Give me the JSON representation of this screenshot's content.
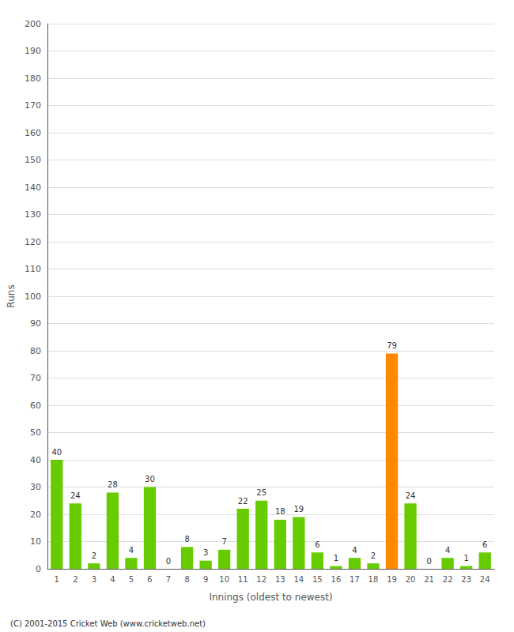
{
  "chart_data": {
    "type": "bar",
    "xlabel": "Innings (oldest to newest)",
    "ylabel": "Runs",
    "categories": [
      1,
      2,
      3,
      4,
      5,
      6,
      7,
      8,
      9,
      10,
      11,
      12,
      13,
      14,
      15,
      16,
      17,
      18,
      19,
      20,
      21,
      22,
      23,
      24
    ],
    "values": [
      40,
      24,
      2,
      28,
      4,
      30,
      0,
      8,
      3,
      7,
      22,
      25,
      18,
      19,
      6,
      1,
      4,
      2,
      79,
      24,
      0,
      4,
      1,
      6
    ],
    "colors": [
      "#66cc00",
      "#66cc00",
      "#66cc00",
      "#66cc00",
      "#66cc00",
      "#66cc00",
      "#66cc00",
      "#66cc00",
      "#66cc00",
      "#66cc00",
      "#66cc00",
      "#66cc00",
      "#66cc00",
      "#66cc00",
      "#66cc00",
      "#66cc00",
      "#66cc00",
      "#66cc00",
      "#ff8800",
      "#66cc00",
      "#66cc00",
      "#66cc00",
      "#66cc00",
      "#66cc00"
    ],
    "ylim": [
      0,
      200
    ],
    "yticks": [
      0,
      10,
      20,
      30,
      40,
      50,
      60,
      70,
      80,
      90,
      100,
      110,
      120,
      130,
      140,
      150,
      160,
      170,
      180,
      190,
      200
    ],
    "grid": true,
    "data_labels": true,
    "annotation": "(C) 2001-2015 Cricket Web (www.cricketweb.net)"
  }
}
